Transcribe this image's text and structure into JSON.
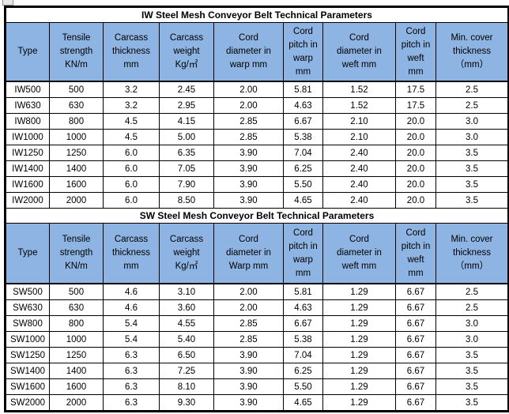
{
  "colors": {
    "header_bg": "#8DB4E2",
    "border": "#000000",
    "title_bg": "#FFFFFF",
    "text": "#000000"
  },
  "tables": [
    {
      "title": "IW Steel Mesh Conveyor Belt Technical Parameters",
      "headers": [
        "Type",
        "Tensile\nstrength\nKN/m",
        "Carcass\nthickness\nmm",
        "Carcass\nweight\nKg/㎡",
        "Cord\ndiameter in\nwarp mm",
        "Cord\npitch in\nwarp\nmm",
        "Cord\ndiameter in\nweft mm",
        "Cord\npitch in\nweft\nmm",
        "Min. cover\nthickness\n（mm）"
      ],
      "rows": [
        [
          "IW500",
          "500",
          "3.2",
          "2.45",
          "2.00",
          "5.81",
          "1.52",
          "17.5",
          "2.5"
        ],
        [
          "IW630",
          "630",
          "3.2",
          "2.95",
          "2.00",
          "4.63",
          "1.52",
          "17.5",
          "2.5"
        ],
        [
          "IW800",
          "800",
          "4.5",
          "4.15",
          "2.85",
          "6.67",
          "2.10",
          "20.0",
          "3.0"
        ],
        [
          "IW1000",
          "1000",
          "4.5",
          "5.00",
          "2.85",
          "5.38",
          "2.10",
          "20.0",
          "3.0"
        ],
        [
          "IW1250",
          "1250",
          "6.0",
          "6.35",
          "3.90",
          "7.04",
          "2.40",
          "20.0",
          "3.5"
        ],
        [
          "IW1400",
          "1400",
          "6.0",
          "7.05",
          "3.90",
          "6.25",
          "2.40",
          "20.0",
          "3.5"
        ],
        [
          "IW1600",
          "1600",
          "6.0",
          "7.90",
          "3.90",
          "5.50",
          "2.40",
          "20.0",
          "3.5"
        ],
        [
          "IW2000",
          "2000",
          "6.0",
          "8.50",
          "3.90",
          "4.65",
          "2.40",
          "20.0",
          "3.5"
        ]
      ]
    },
    {
      "title": "SW Steel Mesh Conveyor Belt Technical Parameters",
      "headers": [
        "Type",
        "Tensile\nstrength\nKN/m",
        "Carcass\nthickness\nmm",
        "Carcass\nweight\nKg/㎡",
        "Cord\ndiameter in\nWarp mm",
        "Cord\npitch in\nwarp\nmm",
        "Cord\ndiameter in\nweft mm",
        "Cord\npitch in\nweft\nmm",
        "Min. cover\nthickness\n（mm）"
      ],
      "rows": [
        [
          "SW500",
          "500",
          "4.6",
          "3.10",
          "2.00",
          "5.81",
          "1.29",
          "6.67",
          "2.5"
        ],
        [
          "SW630",
          "630",
          "4.6",
          "3.60",
          "2.00",
          "4.63",
          "1.29",
          "6.67",
          "2.5"
        ],
        [
          "SW800",
          "800",
          "5.4",
          "4.55",
          "2.85",
          "6.67",
          "1.29",
          "6.67",
          "3.0"
        ],
        [
          "SW1000",
          "1000",
          "5.4",
          "5.40",
          "2.85",
          "5.38",
          "1.29",
          "6.67",
          "3.0"
        ],
        [
          "SW1250",
          "1250",
          "6.3",
          "6.50",
          "3.90",
          "7.04",
          "1.29",
          "6.67",
          "3.5"
        ],
        [
          "SW1400",
          "1400",
          "6.3",
          "7.25",
          "3.90",
          "6.25",
          "1.29",
          "6.67",
          "3.5"
        ],
        [
          "SW1600",
          "1600",
          "6.3",
          "8.10",
          "3.90",
          "5.50",
          "1.29",
          "6.67",
          "3.5"
        ],
        [
          "SW2000",
          "2000",
          "6.3",
          "9.30",
          "3.90",
          "4.65",
          "1.29",
          "6.67",
          "3.5"
        ]
      ]
    }
  ]
}
